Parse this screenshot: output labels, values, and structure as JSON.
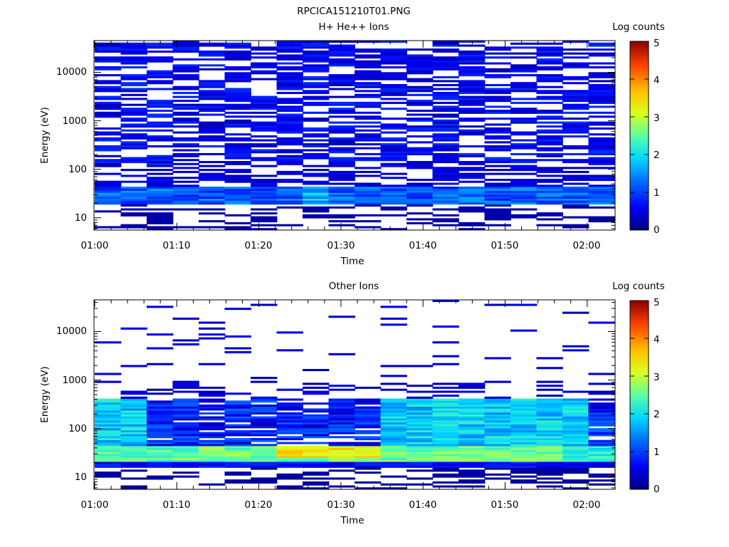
{
  "figure": {
    "title": "RPCICA151210T01.PNG"
  },
  "chart_data": [
    {
      "type": "heatmap",
      "title": "H+ He++ Ions",
      "xlabel": "Time",
      "ylabel": "Energy (eV)",
      "x_ticks": [
        "01:00",
        "01:10",
        "01:20",
        "01:30",
        "01:40",
        "01:50",
        "02:00"
      ],
      "xlim": [
        "01:00",
        "02:03"
      ],
      "y_scale": "log",
      "y_ticks": [
        "10",
        "100",
        "1000",
        "10000"
      ],
      "ylim": [
        5.6,
        45000
      ],
      "colorbar": {
        "label": "Log counts",
        "range": [
          0,
          5
        ],
        "ticks": [
          "0",
          "1",
          "2",
          "3",
          "4",
          "5"
        ]
      },
      "time_bins": [
        "01:00",
        "01:03.3",
        "01:06.5",
        "01:09.8",
        "01:13",
        "01:16.3",
        "01:19.5",
        "01:22.8",
        "01:26",
        "01:29.3",
        "01:32.5",
        "01:35.8",
        "01:39",
        "01:42.3",
        "01:45.5",
        "01:48.8",
        "01:52",
        "01:55.3",
        "01:58.5",
        "02:01.8"
      ],
      "energy_bins_description": "96 logarithmic energy steps from about 6 eV to 45 keV",
      "summary": "sparse counts of about 0.5 log counts across all energies, enhanced band (log counts 1-2) near 20-40 eV",
      "peak_log_counts": 2.3,
      "peak_energy_eV": 28,
      "peak_time": "01:27"
    },
    {
      "type": "heatmap",
      "title": "Other Ions",
      "xlabel": "Time",
      "ylabel": "Energy (eV)",
      "x_ticks": [
        "01:00",
        "01:10",
        "01:20",
        "01:30",
        "01:40",
        "01:50",
        "02:00"
      ],
      "xlim": [
        "01:00",
        "02:03"
      ],
      "y_scale": "log",
      "y_ticks": [
        "10",
        "100",
        "1000",
        "10000"
      ],
      "ylim": [
        5.6,
        45000
      ],
      "colorbar": {
        "label": "Log counts",
        "range": [
          0,
          5
        ],
        "ticks": [
          "0",
          "1",
          "2",
          "3",
          "4",
          "5"
        ]
      },
      "time_bins": [
        "01:00",
        "01:03.3",
        "01:06.5",
        "01:09.8",
        "01:13",
        "01:16.3",
        "01:19.5",
        "01:22.8",
        "01:26",
        "01:29.3",
        "01:32.5",
        "01:35.8",
        "01:39",
        "01:42.3",
        "01:45.5",
        "01:48.8",
        "01:52",
        "01:55.3",
        "01:58.5",
        "02:01.8"
      ],
      "energy_bins_description": "96 logarithmic energy steps from about 6 eV to 45 keV",
      "summary": "intense band of 2-3.5 log counts between 20 and 400 eV, sparse isolated counts above 1 keV",
      "peak_log_counts": 3.4,
      "peak_energy_eV": 35,
      "peak_time": "01:27"
    }
  ]
}
